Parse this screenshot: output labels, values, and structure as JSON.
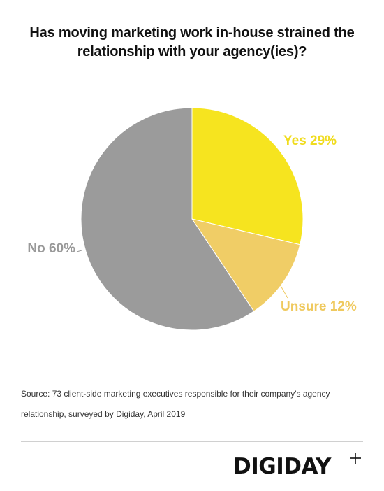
{
  "chart_data": {
    "type": "pie",
    "title": "Has moving marketing work in-house strained the relationship with your agency(ies)?",
    "slices": [
      {
        "label": "Yes",
        "value": 29,
        "display": "Yes 29%",
        "color": "#f6e41f",
        "label_color": "#f0dc1e"
      },
      {
        "label": "Unsure",
        "value": 12,
        "display": "Unsure 12%",
        "color": "#f0cd66",
        "label_color": "#efc95e"
      },
      {
        "label": "No",
        "value": 60,
        "display": "No 60%",
        "color": "#9b9b9b",
        "label_color": "#999999"
      }
    ]
  },
  "source": {
    "line1": "Source: 73 client-side marketing executives responsible for their company's agency",
    "line2": "relationship, surveyed by Digiday, April 2019"
  },
  "brand": {
    "logo_text": "DIGIDAY",
    "logo_mark": "+"
  }
}
